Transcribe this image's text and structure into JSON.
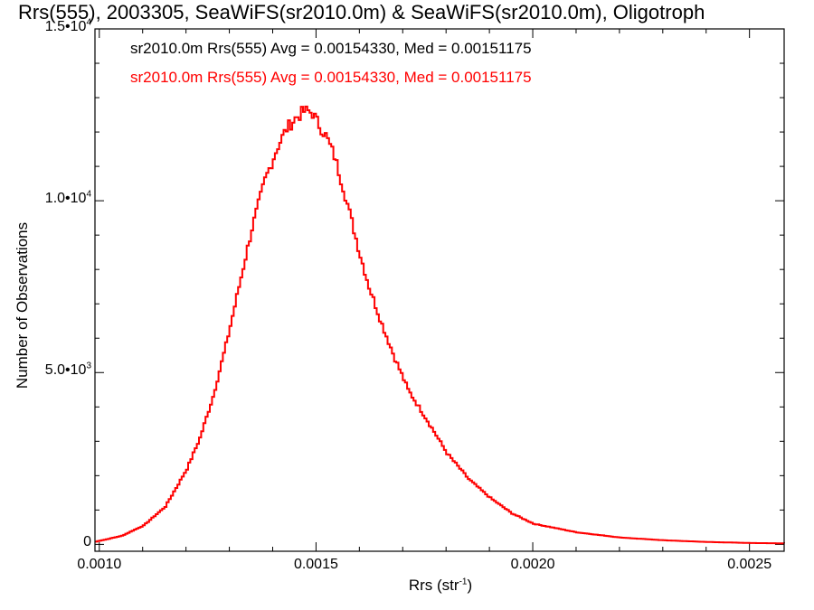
{
  "chart_data": {
    "type": "line",
    "title": "Rrs(555), 2003305, SeaWiFS(sr2010.0m) & SeaWiFS(sr2010.0m), Oligotroph",
    "xlabel": {
      "text": "Rrs (str",
      "sup": "-1",
      "tail": ")"
    },
    "ylabel": "Number of Observations",
    "xlim": [
      0.00099,
      0.00258
    ],
    "ylim": [
      -200,
      15000
    ],
    "x_ticks": [
      {
        "value": 0.001,
        "label": "0.0010"
      },
      {
        "value": 0.0015,
        "label": "0.0015"
      },
      {
        "value": 0.002,
        "label": "0.0020"
      },
      {
        "value": 0.0025,
        "label": "0.0025"
      }
    ],
    "y_ticks": [
      {
        "value": 0,
        "label": "0",
        "sup": ""
      },
      {
        "value": 5000,
        "label": "5.0•10",
        "sup": "3"
      },
      {
        "value": 10000,
        "label": "1.0•10",
        "sup": "4"
      },
      {
        "value": 15000,
        "label": "1.5•10",
        "sup": "4"
      }
    ],
    "legend": [
      {
        "text": "sr2010.0m Rrs(555) Avg = 0.00154330, Med = 0.00151175",
        "color": "#000000"
      },
      {
        "text": "sr2010.0m Rrs(555) Avg = 0.00154330, Med = 0.00151175",
        "color": "#ff0000"
      }
    ],
    "legend_position": "top-left",
    "line_color": "#ff0000",
    "series": [
      {
        "x": [
          0.00099,
          0.00105,
          0.0011,
          0.00115,
          0.0012,
          0.00123,
          0.00126,
          0.00129,
          0.00132,
          0.00135,
          0.00138,
          0.00141,
          0.00143,
          0.00145,
          0.00147,
          0.00148,
          0.00149,
          0.0015,
          0.00152,
          0.00154,
          0.00156,
          0.00158,
          0.0016,
          0.00162,
          0.00165,
          0.00168,
          0.00171,
          0.00175,
          0.0018,
          0.00185,
          0.0019,
          0.00195,
          0.002,
          0.0021,
          0.0022,
          0.0023,
          0.0024,
          0.0025,
          0.00258
        ],
        "y": [
          80,
          250,
          550,
          1100,
          2200,
          3100,
          4300,
          5800,
          7500,
          9200,
          10600,
          11600,
          12100,
          12400,
          12600,
          12600,
          12550,
          12300,
          11900,
          11300,
          10400,
          9400,
          8400,
          7500,
          6400,
          5400,
          4500,
          3700,
          2650,
          1900,
          1350,
          900,
          600,
          350,
          200,
          120,
          70,
          40,
          30
        ]
      }
    ]
  }
}
